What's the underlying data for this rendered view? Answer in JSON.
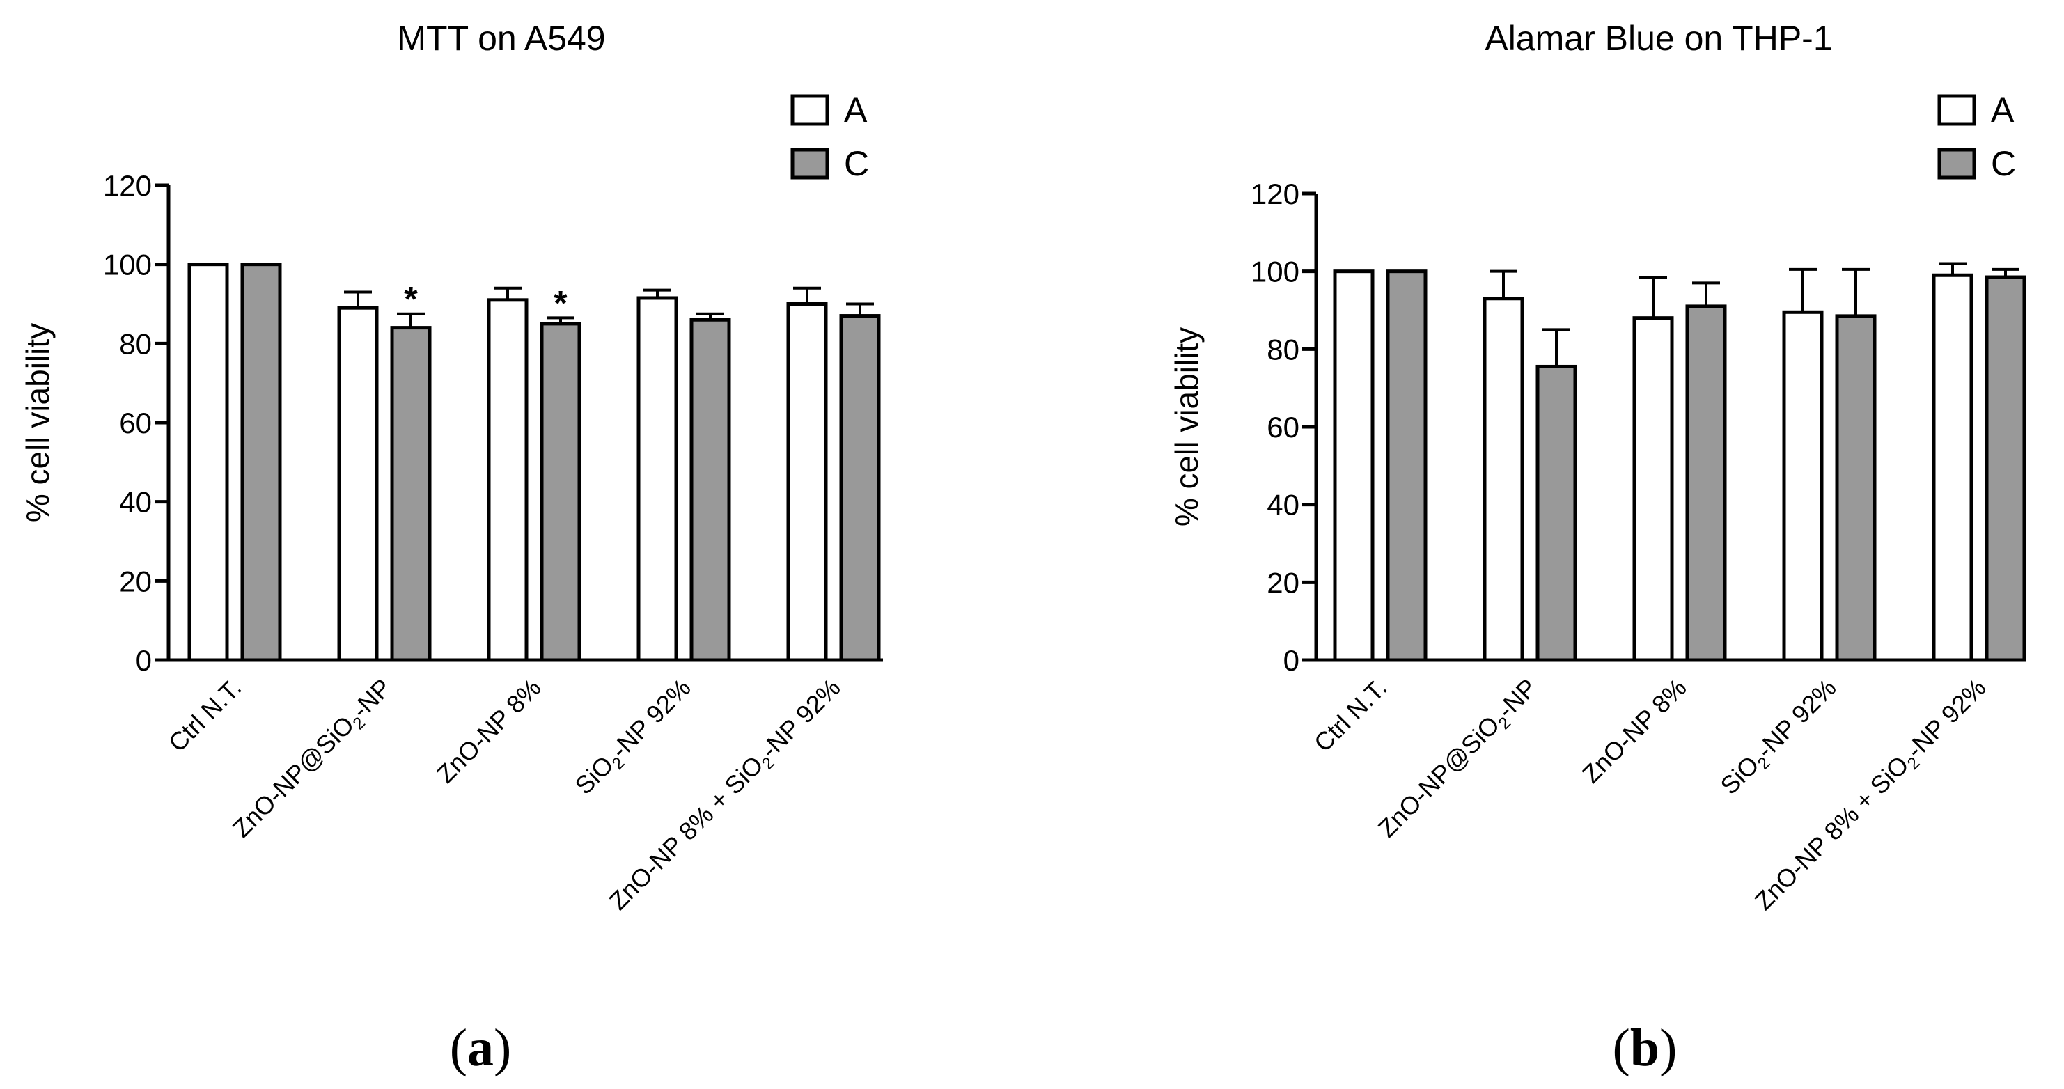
{
  "figure": {
    "panels": [
      {
        "prefix": "(",
        "letter": "a",
        "suffix": ")"
      },
      {
        "prefix": "(",
        "letter": "b",
        "suffix": ")"
      }
    ]
  },
  "chart_data": [
    {
      "type": "bar",
      "title": "MTT on A549",
      "xlabel": "",
      "ylabel": "% cell viability",
      "ylim": [
        0,
        120
      ],
      "yticks": [
        0,
        20,
        40,
        60,
        80,
        100,
        120
      ],
      "grid": false,
      "legend_position": "top-right",
      "categories": [
        {
          "label": "Ctrl N.T.",
          "parts": [
            {
              "t": "Ctrl N.T."
            }
          ]
        },
        {
          "label": "ZnO-NP@SiO2-NP",
          "parts": [
            {
              "t": "ZnO-NP@SiO"
            },
            {
              "t": "2",
              "sub": true
            },
            {
              "t": "-NP"
            }
          ]
        },
        {
          "label": "ZnO-NP 8%",
          "parts": [
            {
              "t": "ZnO-NP 8%"
            }
          ]
        },
        {
          "label": "SiO2-NP 92%",
          "parts": [
            {
              "t": "SiO"
            },
            {
              "t": "2",
              "sub": true
            },
            {
              "t": "-NP 92%"
            }
          ]
        },
        {
          "label": "ZnO-NP 8% + SiO2-NP 92%",
          "parts": [
            {
              "t": "ZnO-NP 8% + SiO"
            },
            {
              "t": "2",
              "sub": true
            },
            {
              "t": "-NP 92%"
            }
          ]
        }
      ],
      "series": [
        {
          "name": "A",
          "color": "#ffffff",
          "values": [
            100,
            89,
            91,
            91.5,
            90
          ],
          "errors": [
            0,
            4,
            3,
            2,
            4
          ]
        },
        {
          "name": "C",
          "color": "#999999",
          "values": [
            100,
            84,
            85,
            86,
            87
          ],
          "errors": [
            0,
            3.5,
            1.5,
            1.5,
            3
          ]
        }
      ],
      "annotations": [
        {
          "series": 1,
          "category": 1,
          "text": "*"
        },
        {
          "series": 1,
          "category": 2,
          "text": "*"
        }
      ]
    },
    {
      "type": "bar",
      "title": "Alamar Blue on THP-1",
      "xlabel": "",
      "ylabel": "% cell viability",
      "ylim": [
        0,
        120
      ],
      "yticks": [
        0,
        20,
        40,
        60,
        80,
        100,
        120
      ],
      "grid": false,
      "legend_position": "top-right",
      "categories": [
        {
          "label": "Ctrl N.T.",
          "parts": [
            {
              "t": "Ctrl N.T."
            }
          ]
        },
        {
          "label": "ZnO-NP@SiO2-NP",
          "parts": [
            {
              "t": "ZnO-NP@SiO"
            },
            {
              "t": "2",
              "sub": true
            },
            {
              "t": "-NP"
            }
          ]
        },
        {
          "label": "ZnO-NP 8%",
          "parts": [
            {
              "t": "ZnO-NP 8%"
            }
          ]
        },
        {
          "label": "SiO2-NP 92%",
          "parts": [
            {
              "t": "SiO"
            },
            {
              "t": "2",
              "sub": true
            },
            {
              "t": "-NP 92%"
            }
          ]
        },
        {
          "label": "ZnO-NP 8% + SiO2-NP 92%",
          "parts": [
            {
              "t": "ZnO-NP 8% + SiO"
            },
            {
              "t": "2",
              "sub": true
            },
            {
              "t": "-NP 92%"
            }
          ]
        }
      ],
      "series": [
        {
          "name": "A",
          "color": "#ffffff",
          "values": [
            100,
            93,
            88,
            89.5,
            99
          ],
          "errors": [
            0,
            7,
            10.5,
            11,
            3
          ]
        },
        {
          "name": "C",
          "color": "#999999",
          "values": [
            100,
            75.5,
            91,
            88.5,
            98.5
          ],
          "errors": [
            0,
            9.5,
            6,
            12,
            2
          ]
        }
      ],
      "annotations": []
    }
  ]
}
